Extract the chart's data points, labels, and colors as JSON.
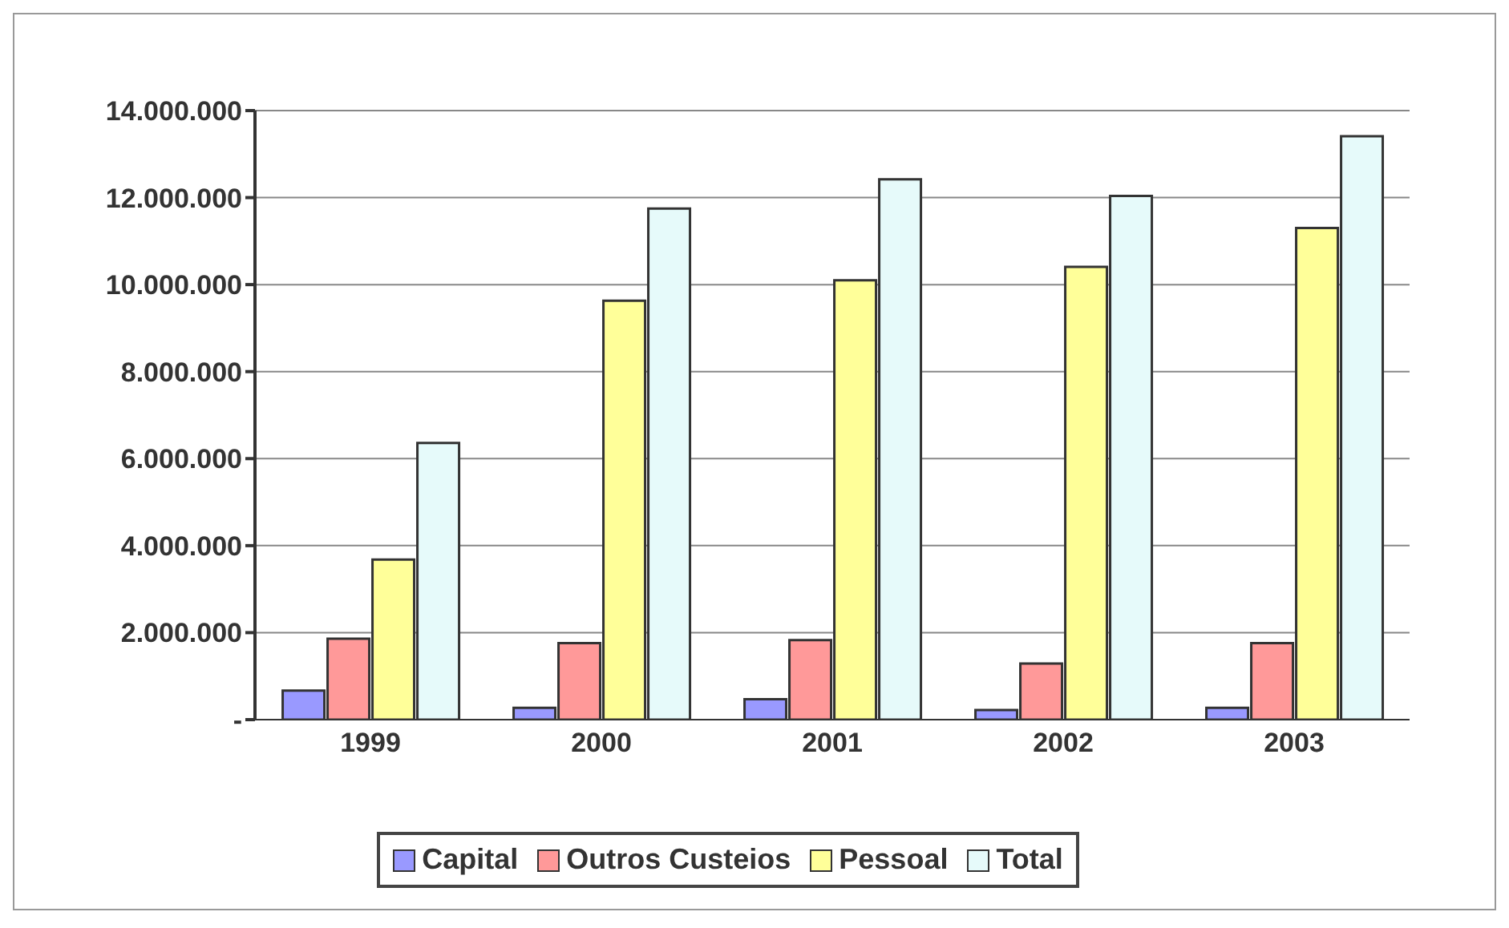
{
  "chart_data": {
    "type": "bar",
    "categories": [
      "1999",
      "2000",
      "2001",
      "2002",
      "2003"
    ],
    "series": [
      {
        "name": "Capital",
        "color": "#9999ff",
        "values": [
          670000,
          270000,
          470000,
          220000,
          270000
        ]
      },
      {
        "name": "Outros Custeios",
        "color": "#ff9999",
        "values": [
          1860000,
          1760000,
          1830000,
          1290000,
          1760000
        ]
      },
      {
        "name": "Pessoal",
        "color": "#ffff99",
        "values": [
          3680000,
          9630000,
          10100000,
          10410000,
          11300000
        ]
      },
      {
        "name": "Total",
        "color": "#e6fafa",
        "values": [
          6360000,
          11750000,
          12420000,
          12040000,
          13410000
        ]
      }
    ],
    "ylim": [
      0,
      14000000
    ],
    "yticks": [
      {
        "value": 0,
        "label": "-"
      },
      {
        "value": 2000000,
        "label": "2.000.000"
      },
      {
        "value": 4000000,
        "label": "4.000.000"
      },
      {
        "value": 6000000,
        "label": "6.000.000"
      },
      {
        "value": 8000000,
        "label": "8.000.000"
      },
      {
        "value": 10000000,
        "label": "10.000.000"
      },
      {
        "value": 12000000,
        "label": "12.000.000"
      },
      {
        "value": 14000000,
        "label": "14.000.000"
      }
    ],
    "grid": "y",
    "legend": "bottom"
  }
}
